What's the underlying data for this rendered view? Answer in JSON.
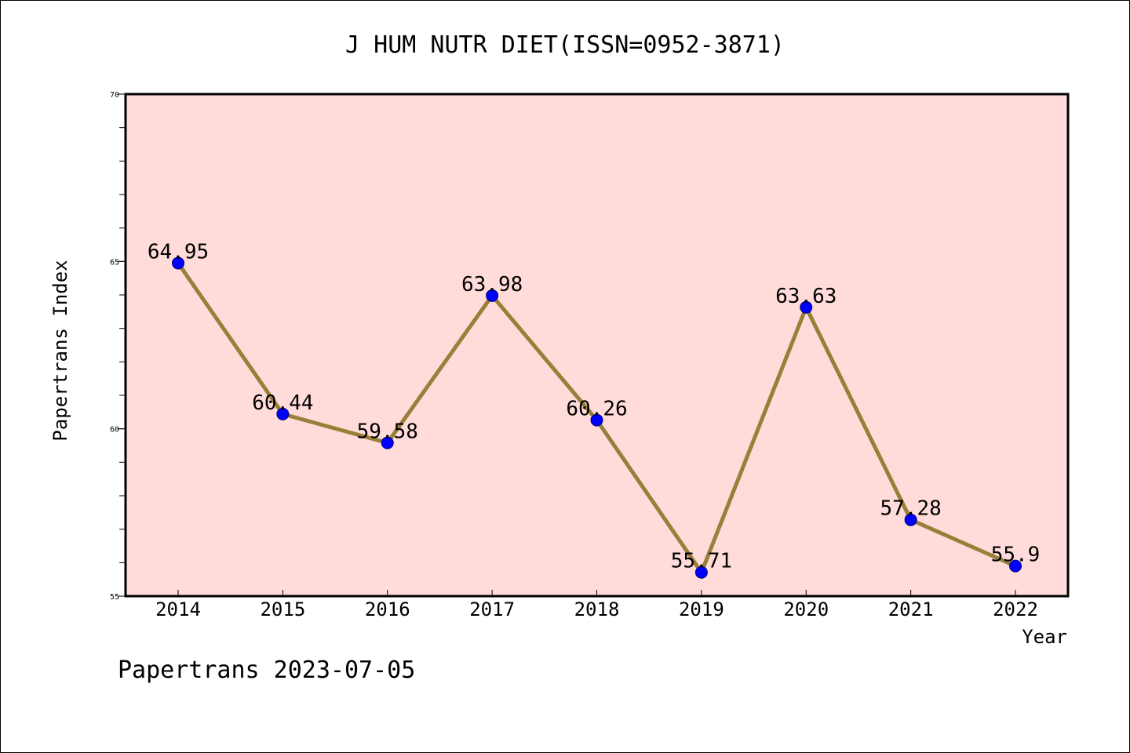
{
  "chart_data": {
    "type": "line",
    "title": "J HUM NUTR DIET(ISSN=0952-3871)",
    "xlabel": "Year",
    "ylabel": "Papertrans Index",
    "categories": [
      "2014",
      "2015",
      "2016",
      "2017",
      "2018",
      "2019",
      "2020",
      "2021",
      "2022"
    ],
    "values": [
      64.95,
      60.44,
      59.58,
      63.98,
      60.26,
      55.71,
      63.63,
      57.28,
      55.9
    ],
    "data_labels": [
      "64.95",
      "60.44",
      "59.58",
      "63.98",
      "60.26",
      "55.71",
      "63.63",
      "57.28",
      "55.9"
    ],
    "ylim": [
      55,
      70
    ],
    "yticks": [
      "55",
      "60",
      "65",
      "70"
    ],
    "grid": false,
    "legend": "none",
    "colors": {
      "plot_background": "#ffdcd9",
      "line": "#9a7f3a",
      "marker": "#0000ff",
      "marker_edge": "#000080"
    }
  },
  "footer": {
    "text": "Papertrans 2023-07-05"
  }
}
